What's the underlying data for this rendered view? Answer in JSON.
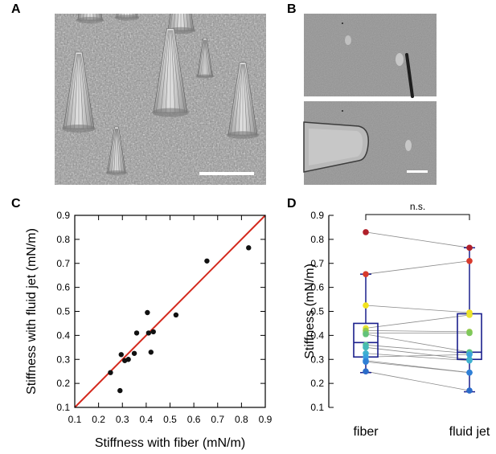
{
  "panels": {
    "a": "A",
    "b": "B",
    "c": "C",
    "d": "D"
  },
  "colors": {
    "identity_line": "#d42a1e",
    "box": "#1a1f8c",
    "points_c": "#111111",
    "pair_lines": "#8a8a8a"
  },
  "chart_data": [
    {
      "type": "scatter",
      "xlabel": "Stiffness with fiber (mN/m)",
      "ylabel": "Stiffness with fluid jet (mN/m)",
      "xlim": [
        0.1,
        0.9
      ],
      "ylim": [
        0.1,
        0.9
      ],
      "xticks": [
        "0.1",
        "0.2",
        "0.3",
        "0.4",
        "0.5",
        "0.6",
        "0.7",
        "0.8",
        "0.9"
      ],
      "yticks": [
        "0.1",
        "0.2",
        "0.3",
        "0.4",
        "0.5",
        "0.6",
        "0.7",
        "0.8",
        "0.9"
      ],
      "reference_line": "y = x",
      "points": [
        {
          "x": 0.25,
          "y": 0.245
        },
        {
          "x": 0.29,
          "y": 0.17
        },
        {
          "x": 0.295,
          "y": 0.32
        },
        {
          "x": 0.31,
          "y": 0.295
        },
        {
          "x": 0.325,
          "y": 0.3
        },
        {
          "x": 0.35,
          "y": 0.325
        },
        {
          "x": 0.36,
          "y": 0.41
        },
        {
          "x": 0.405,
          "y": 0.495
        },
        {
          "x": 0.41,
          "y": 0.41
        },
        {
          "x": 0.42,
          "y": 0.33
        },
        {
          "x": 0.43,
          "y": 0.415
        },
        {
          "x": 0.525,
          "y": 0.485
        },
        {
          "x": 0.655,
          "y": 0.71
        },
        {
          "x": 0.83,
          "y": 0.765
        }
      ]
    },
    {
      "type": "box",
      "ylabel": "Stiffness (mN/m)",
      "ylim": [
        0.1,
        0.9
      ],
      "yticks": [
        "0.1",
        "0.2",
        "0.3",
        "0.4",
        "0.5",
        "0.6",
        "0.7",
        "0.8",
        "0.9"
      ],
      "categories": [
        "fiber",
        "fluid jet"
      ],
      "significance": "n.s.",
      "boxes": [
        {
          "category": "fiber",
          "whisker_low": 0.245,
          "q1": 0.31,
          "median": 0.37,
          "q3": 0.45,
          "whisker_high": 0.655
        },
        {
          "category": "fluid jet",
          "whisker_low": 0.165,
          "q1": 0.3,
          "median": 0.33,
          "q3": 0.49,
          "whisker_high": 0.765
        }
      ],
      "pairs": [
        {
          "fiber": 0.83,
          "fluid_jet": 0.765,
          "color": "#b0202a"
        },
        {
          "fiber": 0.655,
          "fluid_jet": 0.71,
          "color": "#d83a2c"
        },
        {
          "fiber": 0.525,
          "fluid_jet": 0.495,
          "color": "#f2e21d"
        },
        {
          "fiber": 0.43,
          "fluid_jet": 0.485,
          "color": "#e9e431"
        },
        {
          "fiber": 0.42,
          "fluid_jet": 0.415,
          "color": "#96c94a"
        },
        {
          "fiber": 0.41,
          "fluid_jet": 0.41,
          "color": "#7ec85a"
        },
        {
          "fiber": 0.405,
          "fluid_jet": 0.33,
          "color": "#63c27a"
        },
        {
          "fiber": 0.36,
          "fluid_jet": 0.325,
          "color": "#4fbfa0"
        },
        {
          "fiber": 0.35,
          "fluid_jet": 0.3,
          "color": "#45bab8"
        },
        {
          "fiber": 0.325,
          "fluid_jet": 0.295,
          "color": "#3fb2cf"
        },
        {
          "fiber": 0.31,
          "fluid_jet": 0.32,
          "color": "#3aa3dd"
        },
        {
          "fiber": 0.295,
          "fluid_jet": 0.245,
          "color": "#3690de"
        },
        {
          "fiber": 0.29,
          "fluid_jet": 0.245,
          "color": "#2f7fd6"
        },
        {
          "fiber": 0.25,
          "fluid_jet": 0.17,
          "color": "#2b6bc9"
        }
      ]
    }
  ]
}
